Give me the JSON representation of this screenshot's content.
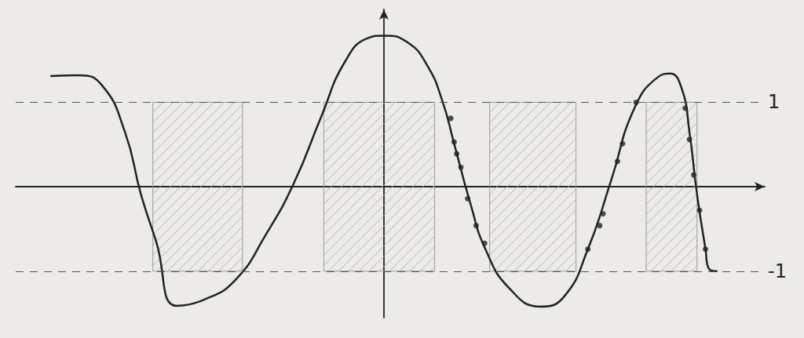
{
  "chart_data": {
    "type": "line",
    "xlim": [
      -4.35,
      4.5
    ],
    "ylim": [
      -1.55,
      2.1
    ],
    "yticks": [
      -1,
      1
    ],
    "tick_labels": "y",
    "grid": true,
    "bands": [
      [
        -2.73,
        -1.67
      ],
      [
        -0.71,
        0.6
      ],
      [
        1.25,
        2.27
      ],
      [
        3.1,
        3.7
      ]
    ],
    "band_ylim": [
      -1,
      1
    ],
    "series": [
      {
        "type": "line",
        "color": "#222222",
        "line_style": "solid",
        "x": [
          -3.94,
          -3.61,
          -3.33,
          -3.06,
          -2.87,
          -2.69,
          -2.45,
          -2.13,
          -1.76,
          -1.39,
          -1.06,
          -0.74,
          -0.46,
          -0.19,
          0,
          0.28,
          0.51,
          0.69,
          0.83,
          1.02,
          1.2,
          1.48,
          1.85,
          2.13,
          2.41,
          2.69,
          2.96,
          3.24,
          3.38,
          3.52,
          3.61,
          3.7,
          3.8,
          3.84,
          3.94
        ],
        "values": [
          1.31,
          1.32,
          1.2,
          0.65,
          -0.09,
          -0.65,
          -1.41,
          -1.34,
          -1.11,
          -0.56,
          0.05,
          0.83,
          1.48,
          1.76,
          1.79,
          1.71,
          1.44,
          1.02,
          0.51,
          -0.19,
          -0.74,
          -1.2,
          -1.42,
          -1.3,
          -0.74,
          0.09,
          0.93,
          1.3,
          1.34,
          1.16,
          0.65,
          -0.09,
          -0.74,
          -0.97,
          -1.0
        ]
      },
      {
        "type": "scatter",
        "color": "#222222",
        "marker": "circle",
        "x": [
          0.79,
          0.83,
          0.86,
          0.91,
          0.99,
          1.09,
          1.19,
          2.41,
          2.55,
          2.59,
          2.76,
          2.82,
          2.98,
          3.56,
          3.61,
          3.66,
          3.73,
          3.8
        ],
        "values": [
          0.81,
          0.53,
          0.39,
          0.23,
          -0.14,
          -0.46,
          -0.67,
          -0.74,
          -0.46,
          -0.32,
          0.3,
          0.51,
          1.0,
          0.93,
          0.56,
          0.14,
          -0.28,
          -0.74
        ]
      }
    ]
  }
}
